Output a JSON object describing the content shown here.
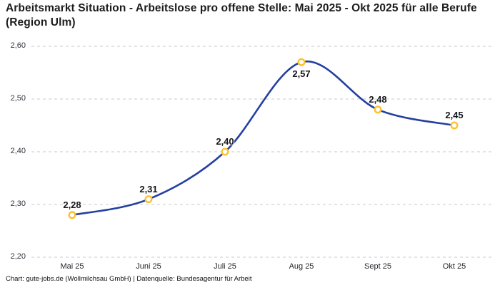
{
  "title": "Arbeitsmarkt Situation - Arbeitslose pro offene Stelle: Mai 2025 - Okt 2025 für alle Berufe (Region Ulm)",
  "footer": "Chart: gute-jobs.de (Wollmilchsau GmbH) | Datenquelle: Bundesagentur für Arbeit",
  "chart_data": {
    "type": "line",
    "title": "Arbeitsmarkt Situation - Arbeitslose pro offene Stelle: Mai 2025 - Okt 2025 für alle Berufe (Region Ulm)",
    "categories": [
      "Mai 25",
      "Juni 25",
      "Juli 25",
      "Aug 25",
      "Sept 25",
      "Okt 25"
    ],
    "values": [
      2.28,
      2.31,
      2.4,
      2.57,
      2.48,
      2.45
    ],
    "value_labels": [
      "2,28",
      "2,31",
      "2,40",
      "2,57",
      "2,48",
      "2,45"
    ],
    "label_position": [
      "above",
      "above",
      "above",
      "below",
      "above",
      "above"
    ],
    "xlabel": "",
    "ylabel": "",
    "ylim": [
      2.2,
      2.6
    ],
    "yticks": [
      2.2,
      2.3,
      2.4,
      2.5,
      2.6
    ],
    "ytick_labels": [
      "2,20",
      "2,30",
      "2,40",
      "2,50",
      "2,60"
    ],
    "grid": "horizontal-dashed",
    "legend": "none",
    "line_style": "smooth",
    "marker": "open-circle",
    "colors": {
      "line": "#2340a0",
      "marker_stroke": "#fdc02f",
      "marker_fill": "#ffffff",
      "gridline": "#c9c9c9",
      "title": "#1c1c1e",
      "tick_label": "#33343e",
      "point_label": "#16161d",
      "footer": "#111111"
    }
  }
}
